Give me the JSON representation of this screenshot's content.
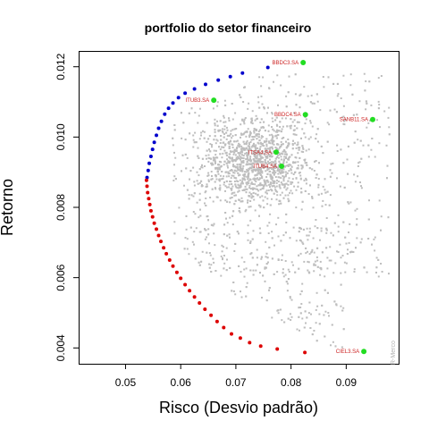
{
  "chart_data": {
    "type": "scatter",
    "title": "portfolio do setor financeiro",
    "xlabel": "Risco (Desvio padrão)",
    "ylabel": "Retorno",
    "xlim": [
      0.0415,
      0.0995
    ],
    "ylim": [
      0.00355,
      0.01245
    ],
    "x_ticks": [
      0.05,
      0.06,
      0.07,
      0.08,
      0.09
    ],
    "x_tick_labels": [
      "0.05",
      "0.06",
      "0.07",
      "0.08",
      "0.09"
    ],
    "y_ticks": [
      0.004,
      0.006,
      0.008,
      0.01,
      0.012
    ],
    "y_tick_labels": [
      "0.004",
      "0.006",
      "0.008",
      "0.010",
      "0.012"
    ],
    "grid": false,
    "legend": "none",
    "colors": {
      "simulated": "#bebebe",
      "frontier_upper": "#0000cc",
      "frontier_lower": "#dd0000",
      "assets": "#22dd22",
      "asset_labels": "#cc2222",
      "watermark": "#b0b0b0"
    },
    "simulated_cloud": {
      "description_count": 2500,
      "center": [
        0.0735,
        0.0093
      ]
    },
    "series": [
      {
        "role": "efficient-frontier-upper",
        "color": "#0000cc",
        "points": [
          [
            0.0539,
            0.00885
          ],
          [
            0.0541,
            0.00905
          ],
          [
            0.0543,
            0.00925
          ],
          [
            0.0546,
            0.00945
          ],
          [
            0.0549,
            0.00965
          ],
          [
            0.0552,
            0.00985
          ],
          [
            0.0556,
            0.01005
          ],
          [
            0.056,
            0.01025
          ],
          [
            0.0565,
            0.01045
          ],
          [
            0.0571,
            0.01065
          ],
          [
            0.0578,
            0.01082
          ],
          [
            0.0586,
            0.01097
          ],
          [
            0.0596,
            0.01112
          ],
          [
            0.0608,
            0.01125
          ],
          [
            0.0625,
            0.01137
          ],
          [
            0.0645,
            0.0115
          ],
          [
            0.0668,
            0.01162
          ],
          [
            0.069,
            0.01172
          ],
          [
            0.0712,
            0.01182
          ],
          [
            0.0758,
            0.01198
          ]
        ]
      },
      {
        "role": "efficient-frontier-lower",
        "color": "#dd0000",
        "points": [
          [
            0.0538,
            0.00877
          ],
          [
            0.0539,
            0.0086
          ],
          [
            0.054,
            0.00842
          ],
          [
            0.0542,
            0.00825
          ],
          [
            0.0544,
            0.00808
          ],
          [
            0.0546,
            0.0079
          ],
          [
            0.0549,
            0.00773
          ],
          [
            0.0552,
            0.00755
          ],
          [
            0.0556,
            0.00738
          ],
          [
            0.056,
            0.0072
          ],
          [
            0.0564,
            0.00703
          ],
          [
            0.0569,
            0.00685
          ],
          [
            0.0574,
            0.00668
          ],
          [
            0.058,
            0.0065
          ],
          [
            0.0586,
            0.00633
          ],
          [
            0.0593,
            0.00615
          ],
          [
            0.06,
            0.00598
          ],
          [
            0.0608,
            0.0058
          ],
          [
            0.0616,
            0.00563
          ],
          [
            0.0625,
            0.00545
          ],
          [
            0.0634,
            0.00528
          ],
          [
            0.0644,
            0.0051
          ],
          [
            0.0655,
            0.00493
          ],
          [
            0.0666,
            0.00475
          ],
          [
            0.0678,
            0.00458
          ],
          [
            0.0692,
            0.0044
          ],
          [
            0.0708,
            0.00428
          ],
          [
            0.0725,
            0.00415
          ],
          [
            0.0745,
            0.00405
          ],
          [
            0.0775,
            0.00397
          ],
          [
            0.0825,
            0.00387
          ]
        ]
      },
      {
        "role": "assets",
        "color": "#22dd22",
        "points": [
          {
            "name": "BBDC3.SA",
            "x": 0.0822,
            "y": 0.01212
          },
          {
            "name": "BBDC4.SA",
            "x": 0.0826,
            "y": 0.01064
          },
          {
            "name": "SANB11.SA",
            "x": 0.0948,
            "y": 0.0105
          },
          {
            "name": "ITUB3.SA",
            "x": 0.066,
            "y": 0.01105
          },
          {
            "name": "ITSA4.SA",
            "x": 0.0773,
            "y": 0.00957
          },
          {
            "name": "ITUB4.SA",
            "x": 0.0783,
            "y": 0.00917
          },
          {
            "name": "CIEL3.SA",
            "x": 0.0932,
            "y": 0.0039
          }
        ]
      }
    ],
    "watermark": "R-Merco"
  }
}
